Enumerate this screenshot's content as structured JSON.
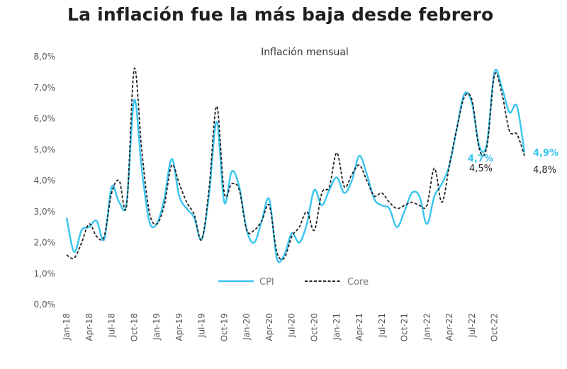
{
  "page_title": "La inflación fue la más baja desde febrero",
  "colors": {
    "cpi": "#38c4ef",
    "core": "#222222",
    "text": "#555555"
  },
  "chart_data": {
    "type": "line",
    "title": "Inflación mensual",
    "xlabel": "",
    "ylabel": "",
    "ylim": [
      0,
      8
    ],
    "yticks": [
      "0,0%",
      "1,0%",
      "2,0%",
      "3,0%",
      "4,0%",
      "5,0%",
      "6,0%",
      "7,0%",
      "8,0%"
    ],
    "xticks": [
      "Jan-18",
      "Apr-18",
      "Jul-18",
      "Oct-18",
      "Jan-19",
      "Apr-19",
      "Jul-19",
      "Oct-19",
      "Jan-20",
      "Apr-20",
      "Jul-20",
      "Oct-20",
      "Jan-21",
      "Apr-21",
      "Jul-21",
      "Oct-21",
      "Jan-22",
      "Apr-22",
      "Jul-22",
      "Oct-22"
    ],
    "x_start": "Jan-18",
    "x_end": "Oct-22",
    "series": [
      {
        "name": "CPI",
        "values": [
          2.8,
          1.7,
          2.4,
          2.5,
          2.7,
          2.1,
          3.8,
          3.3,
          3.3,
          6.6,
          4.4,
          2.7,
          2.6,
          3.4,
          4.7,
          3.5,
          3.1,
          2.8,
          2.1,
          3.6,
          5.9,
          3.3,
          4.3,
          3.8,
          2.4,
          2.0,
          2.7,
          3.4,
          1.5,
          1.6,
          2.3,
          2.0,
          2.6,
          3.7,
          3.2,
          3.7,
          4.1,
          3.6,
          4.0,
          4.8,
          4.2,
          3.4,
          3.2,
          3.1,
          2.5,
          3.0,
          3.6,
          3.5,
          2.6,
          3.5,
          3.9,
          4.5,
          5.7,
          6.8,
          6.5,
          5.1,
          5.2,
          7.5,
          7.0,
          6.2,
          6.4,
          4.9
        ],
        "end_label": "4,9%",
        "other_label": "4,7%"
      },
      {
        "name": "Core",
        "values": [
          1.6,
          1.5,
          2.0,
          2.6,
          2.2,
          2.2,
          3.6,
          4.0,
          3.2,
          7.6,
          5.0,
          3.0,
          2.6,
          3.2,
          4.5,
          3.9,
          3.3,
          2.9,
          2.1,
          3.8,
          6.4,
          3.6,
          3.9,
          3.7,
          2.4,
          2.4,
          2.7,
          3.2,
          1.7,
          1.5,
          2.2,
          2.5,
          3.0,
          2.4,
          3.6,
          3.8,
          4.9,
          3.8,
          4.2,
          4.5,
          4.0,
          3.5,
          3.6,
          3.3,
          3.1,
          3.2,
          3.3,
          3.2,
          3.2,
          4.4,
          3.3,
          4.5,
          5.7,
          6.7,
          6.6,
          5.0,
          5.1,
          7.4,
          6.8,
          5.6,
          5.5,
          4.8
        ],
        "end_label": "4,8%",
        "other_label": "4,5%"
      }
    ],
    "legend": {
      "position": "bottom-center",
      "entries": [
        "CPI",
        "Core"
      ]
    },
    "grid": false
  }
}
